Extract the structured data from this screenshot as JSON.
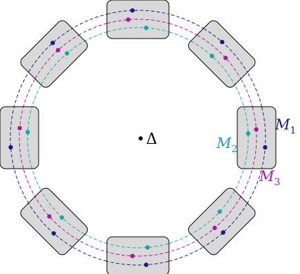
{
  "center_label": "Δ",
  "labels": {
    "m1": {
      "base": "M",
      "sub": "1"
    },
    "m2": {
      "base": "M",
      "sub": "2"
    },
    "m3": {
      "base": "M",
      "sub": "3"
    }
  },
  "colors": {
    "m1": "#1a1a8c",
    "m2": "#1aa5a5",
    "m3": "#a51aa5",
    "box_fill": "#d9d9d9",
    "box_stroke": "#000000"
  },
  "box_count": 8
}
